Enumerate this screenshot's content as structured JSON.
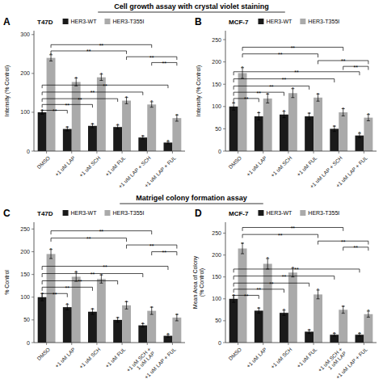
{
  "section_titles": [
    "Cell growth assay with crystal violet staining",
    "Matrigel colony formation assay"
  ],
  "chart_data": [
    {
      "type": "bar",
      "title": "T47D",
      "ylabel": "Intensity (% Control)",
      "ylim": [
        0,
        310
      ],
      "yticks": [
        0,
        100,
        200,
        300
      ],
      "categories": [
        "DMSO",
        "+1 uM LAP",
        "+1 uM SCH",
        "+1 uM FUL",
        "+1 uM LAP + SCH",
        "+1 uM LAP + FUL"
      ],
      "series": [
        {
          "name": "HER3-WT",
          "color": "#1a1a1a",
          "values": [
            100,
            57,
            65,
            62,
            35,
            22
          ],
          "errors": [
            5,
            5,
            5,
            5,
            4,
            3
          ]
        },
        {
          "name": "HER3-T355I",
          "color": "#aaaaaa",
          "values": [
            240,
            178,
            190,
            130,
            120,
            85
          ],
          "errors": [
            8,
            10,
            8,
            8,
            7,
            8
          ]
        }
      ],
      "legend": "top",
      "grid": false,
      "annotations": [
        {
          "text": "A"
        },
        {
          "text": "*",
          "series": 0,
          "at": [
            0,
            1,
            2,
            3,
            4,
            5
          ]
        },
        {
          "text": "*",
          "series": 1,
          "at": [
            0,
            1,
            2,
            3,
            4,
            5
          ]
        },
        {
          "text": "**",
          "series": 0,
          "from": 0,
          "to": 1,
          "y": 105
        },
        {
          "text": "**",
          "series": 0,
          "from": 0,
          "to": 2,
          "y": 120
        },
        {
          "text": "**",
          "series": 0,
          "from": 0,
          "to": 3,
          "y": 135
        },
        {
          "text": "**",
          "series": 0,
          "from": 0,
          "to": 4,
          "y": 152
        },
        {
          "text": "**",
          "series": 0,
          "from": 0,
          "to": 5,
          "y": 170
        },
        {
          "text": "**",
          "series": 1,
          "from": 0,
          "to": 3,
          "y": 258
        },
        {
          "text": "**",
          "series": 1,
          "from": 0,
          "to": 4,
          "y": 274
        },
        {
          "text": "**",
          "series": 1,
          "from": 3,
          "to": 5,
          "y": 243
        },
        {
          "text": "**",
          "series": 1,
          "from": 4,
          "to": 5,
          "y": 228
        }
      ]
    },
    {
      "type": "bar",
      "title": "MCF-7",
      "ylabel": "Intensity (% Control)",
      "ylim": [
        0,
        270
      ],
      "yticks": [
        0,
        50,
        100,
        150,
        200,
        250
      ],
      "categories": [
        "DMSO",
        "+1 uM LAP",
        "+1 uM SCH",
        "+1 uM FUL",
        "+1 uM LAP + SCH",
        "+1 uM LAP + FUL"
      ],
      "series": [
        {
          "name": "HER3-WT",
          "color": "#1a1a1a",
          "values": [
            100,
            78,
            82,
            78,
            50,
            35
          ],
          "errors": [
            8,
            8,
            7,
            7,
            6,
            5
          ]
        },
        {
          "name": "HER3-T355I",
          "color": "#aaaaaa",
          "values": [
            175,
            118,
            130,
            120,
            87,
            75
          ],
          "errors": [
            12,
            10,
            10,
            8,
            8,
            7
          ]
        }
      ],
      "legend": "top",
      "grid": false,
      "annotations": [
        {
          "text": "B"
        },
        {
          "text": "*",
          "series": 0,
          "at": [
            0,
            1,
            2,
            3,
            4,
            5
          ]
        },
        {
          "text": "*",
          "series": 1,
          "at": [
            0,
            1,
            2,
            3,
            4,
            5
          ]
        },
        {
          "text": "**",
          "series": 0,
          "from": 0,
          "to": 1,
          "y": 118
        },
        {
          "text": "**",
          "series": 0,
          "from": 0,
          "to": 2,
          "y": 132
        },
        {
          "text": "**",
          "series": 0,
          "from": 0,
          "to": 3,
          "y": 146
        },
        {
          "text": "**",
          "series": 0,
          "from": 0,
          "to": 4,
          "y": 162
        },
        {
          "text": "**",
          "series": 0,
          "from": 0,
          "to": 5,
          "y": 178
        },
        {
          "text": "**",
          "series": 1,
          "from": 0,
          "to": 3,
          "y": 218
        },
        {
          "text": "**",
          "series": 1,
          "from": 0,
          "to": 4,
          "y": 233
        },
        {
          "text": "**",
          "series": 1,
          "from": 3,
          "to": 5,
          "y": 203
        },
        {
          "text": "**",
          "series": 1,
          "from": 4,
          "to": 5,
          "y": 190
        }
      ]
    },
    {
      "type": "bar",
      "title": "T47D",
      "ylabel": "% Control",
      "ylim": [
        0,
        265
      ],
      "yticks": [
        0,
        50,
        100,
        150,
        200,
        250
      ],
      "categories": [
        "DMSO",
        "+1 uM LAP",
        "+1 uM SCH",
        "+1 uM FUL",
        "+1 uM SCH +\n1 uM LAP",
        "+1 uM LAP + FUL"
      ],
      "series": [
        {
          "name": "HER3-WT",
          "color": "#1a1a1a",
          "values": [
            100,
            78,
            68,
            50,
            38,
            15
          ],
          "errors": [
            8,
            6,
            6,
            5,
            4,
            3
          ]
        },
        {
          "name": "HER3-T355I",
          "color": "#aaaaaa",
          "values": [
            195,
            145,
            140,
            82,
            70,
            55
          ],
          "errors": [
            10,
            10,
            9,
            8,
            8,
            7
          ]
        }
      ],
      "legend": "top",
      "grid": false,
      "annotations": [
        {
          "text": "C"
        },
        {
          "text": "*",
          "series": 0,
          "at": [
            0,
            1,
            2,
            3,
            4,
            5
          ]
        },
        {
          "text": "*",
          "series": 1,
          "at": [
            0,
            1,
            2,
            3,
            4,
            5
          ]
        },
        {
          "text": "**",
          "series": 0,
          "from": 0,
          "to": 1,
          "y": 108
        },
        {
          "text": "**",
          "series": 0,
          "from": 0,
          "to": 2,
          "y": 122
        },
        {
          "text": "**",
          "series": 0,
          "from": 0,
          "to": 3,
          "y": 136
        },
        {
          "text": "**",
          "series": 0,
          "from": 0,
          "to": 4,
          "y": 152
        },
        {
          "text": "**",
          "series": 0,
          "from": 0,
          "to": 5,
          "y": 168
        },
        {
          "text": "**",
          "series": 1,
          "from": 0,
          "to": 3,
          "y": 230
        },
        {
          "text": "**",
          "series": 1,
          "from": 0,
          "to": 4,
          "y": 246
        },
        {
          "text": "**",
          "series": 1,
          "from": 3,
          "to": 5,
          "y": 215
        },
        {
          "text": "**",
          "series": 1,
          "from": 4,
          "to": 5,
          "y": 200
        }
      ]
    },
    {
      "type": "bar",
      "title": "MCF-7",
      "ylabel": "Mean Area of Colony\n(% Control)",
      "ylim": [
        0,
        275
      ],
      "yticks": [
        0,
        50,
        100,
        150,
        200,
        250
      ],
      "categories": [
        "DMSO",
        "+1 uM LAP",
        "+1 uM SCH",
        "+1 uM FUL",
        "+1 uM SCH +\n1 uM LAP",
        "+1 uM LAP + FUL"
      ],
      "series": [
        {
          "name": "HER3-WT",
          "color": "#1a1a1a",
          "values": [
            100,
            73,
            68,
            25,
            18,
            18
          ],
          "errors": [
            8,
            6,
            6,
            4,
            3,
            3
          ]
        },
        {
          "name": "HER3-T355I",
          "color": "#aaaaaa",
          "values": [
            215,
            180,
            160,
            110,
            75,
            65
          ],
          "errors": [
            12,
            12,
            10,
            10,
            8,
            7
          ]
        }
      ],
      "legend": "top",
      "grid": false,
      "annotations": [
        {
          "text": "D"
        },
        {
          "text": "*",
          "series": 0,
          "at": [
            0,
            1,
            2,
            3,
            4,
            5
          ]
        },
        {
          "text": "*",
          "series": 1,
          "at": [
            0,
            1,
            2,
            3,
            4,
            5
          ]
        },
        {
          "text": "**",
          "series": 0,
          "from": 0,
          "to": 1,
          "y": 108
        },
        {
          "text": "**",
          "series": 0,
          "from": 0,
          "to": 2,
          "y": 122
        },
        {
          "text": "**",
          "series": 0,
          "from": 0,
          "to": 3,
          "y": 136
        },
        {
          "text": "**",
          "series": 0,
          "from": 0,
          "to": 4,
          "y": 152
        },
        {
          "text": "**",
          "series": 0,
          "from": 0,
          "to": 5,
          "y": 168
        },
        {
          "text": "**",
          "series": 1,
          "from": 0,
          "to": 3,
          "y": 247
        },
        {
          "text": "**",
          "series": 1,
          "from": 0,
          "to": 4,
          "y": 263
        },
        {
          "text": "**",
          "series": 1,
          "from": 3,
          "to": 5,
          "y": 232
        },
        {
          "text": "**",
          "series": 1,
          "from": 4,
          "to": 5,
          "y": 218
        }
      ]
    }
  ]
}
